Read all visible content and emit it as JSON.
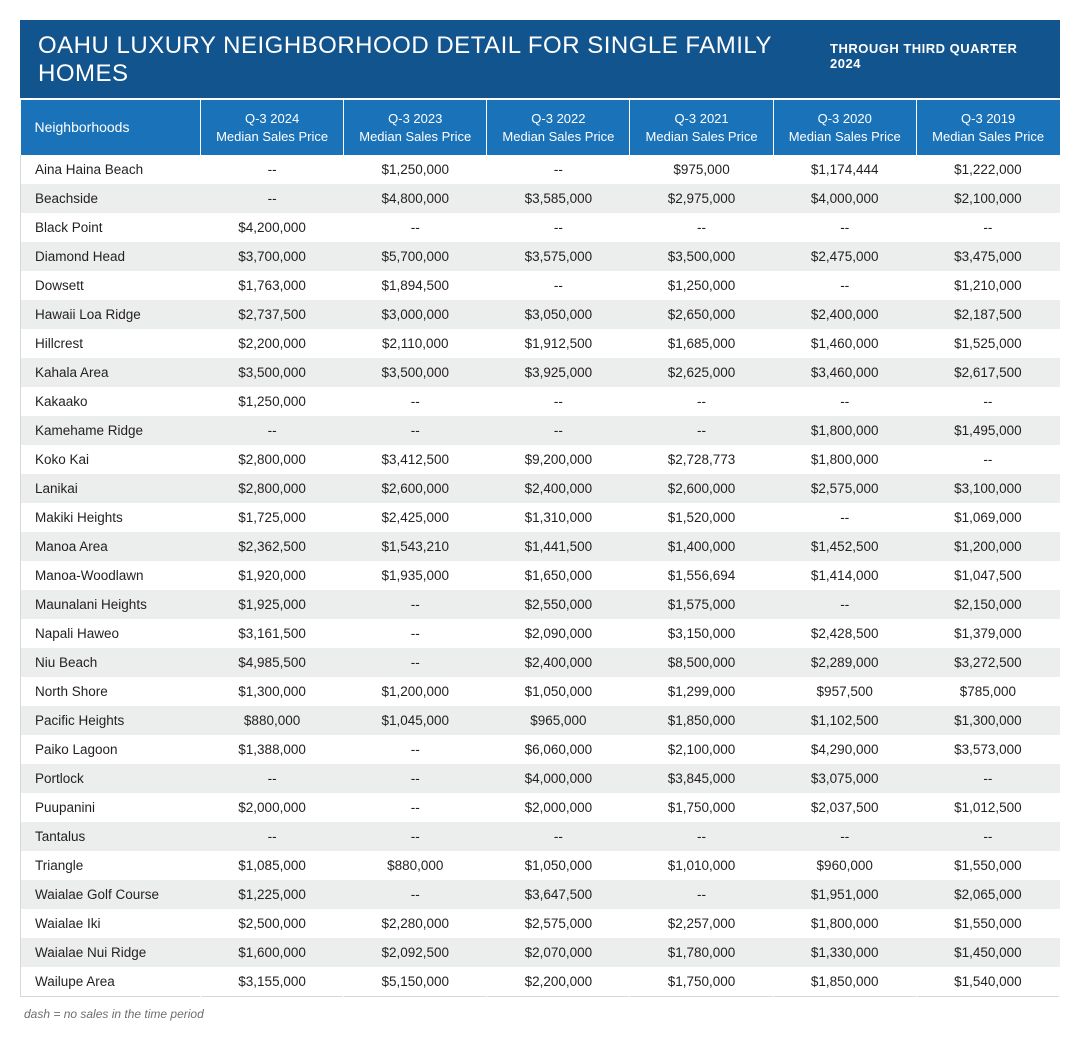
{
  "header": {
    "title": "OAHU LUXURY NEIGHBORHOOD DETAIL FOR SINGLE FAMILY HOMES",
    "period": "THROUGH THIRD QUARTER 2024"
  },
  "table": {
    "first_column_label": "Neighborhoods",
    "year_columns": [
      {
        "line1": "Q-3 2024",
        "line2": "Median Sales Price"
      },
      {
        "line1": "Q-3 2023",
        "line2": "Median Sales Price"
      },
      {
        "line1": "Q-3 2022",
        "line2": "Median Sales Price"
      },
      {
        "line1": "Q-3 2021",
        "line2": "Median Sales Price"
      },
      {
        "line1": "Q-3 2020",
        "line2": "Median Sales Price"
      },
      {
        "line1": "Q-3 2019",
        "line2": "Median Sales Price"
      }
    ],
    "rows": [
      {
        "name": "Aina Haina Beach",
        "v": [
          "--",
          "$1,250,000",
          "--",
          "$975,000",
          "$1,174,444",
          "$1,222,000"
        ]
      },
      {
        "name": "Beachside",
        "v": [
          "--",
          "$4,800,000",
          "$3,585,000",
          "$2,975,000",
          "$4,000,000",
          "$2,100,000"
        ]
      },
      {
        "name": "Black Point",
        "v": [
          "$4,200,000",
          "--",
          "--",
          "--",
          "--",
          "--"
        ]
      },
      {
        "name": "Diamond Head",
        "v": [
          "$3,700,000",
          "$5,700,000",
          "$3,575,000",
          "$3,500,000",
          "$2,475,000",
          "$3,475,000"
        ]
      },
      {
        "name": "Dowsett",
        "v": [
          "$1,763,000",
          "$1,894,500",
          "--",
          "$1,250,000",
          "--",
          "$1,210,000"
        ]
      },
      {
        "name": "Hawaii Loa Ridge",
        "v": [
          "$2,737,500",
          "$3,000,000",
          "$3,050,000",
          "$2,650,000",
          "$2,400,000",
          "$2,187,500"
        ]
      },
      {
        "name": "Hillcrest",
        "v": [
          "$2,200,000",
          "$2,110,000",
          "$1,912,500",
          "$1,685,000",
          "$1,460,000",
          "$1,525,000"
        ]
      },
      {
        "name": "Kahala Area",
        "v": [
          "$3,500,000",
          "$3,500,000",
          "$3,925,000",
          "$2,625,000",
          "$3,460,000",
          "$2,617,500"
        ]
      },
      {
        "name": "Kakaako",
        "v": [
          "$1,250,000",
          "--",
          "--",
          "--",
          "--",
          "--"
        ]
      },
      {
        "name": "Kamehame Ridge",
        "v": [
          "--",
          "--",
          "--",
          "--",
          "$1,800,000",
          "$1,495,000"
        ]
      },
      {
        "name": "Koko Kai",
        "v": [
          "$2,800,000",
          "$3,412,500",
          "$9,200,000",
          "$2,728,773",
          "$1,800,000",
          "--"
        ]
      },
      {
        "name": "Lanikai",
        "v": [
          "$2,800,000",
          "$2,600,000",
          "$2,400,000",
          "$2,600,000",
          "$2,575,000",
          "$3,100,000"
        ]
      },
      {
        "name": "Makiki Heights",
        "v": [
          "$1,725,000",
          "$2,425,000",
          "$1,310,000",
          "$1,520,000",
          "--",
          "$1,069,000"
        ]
      },
      {
        "name": "Manoa Area",
        "v": [
          "$2,362,500",
          "$1,543,210",
          "$1,441,500",
          "$1,400,000",
          "$1,452,500",
          "$1,200,000"
        ]
      },
      {
        "name": "Manoa-Woodlawn",
        "v": [
          "$1,920,000",
          "$1,935,000",
          "$1,650,000",
          "$1,556,694",
          "$1,414,000",
          "$1,047,500"
        ]
      },
      {
        "name": "Maunalani Heights",
        "v": [
          "$1,925,000",
          "--",
          "$2,550,000",
          "$1,575,000",
          "--",
          "$2,150,000"
        ]
      },
      {
        "name": "Napali Haweo",
        "v": [
          "$3,161,500",
          "--",
          "$2,090,000",
          "$3,150,000",
          "$2,428,500",
          "$1,379,000"
        ]
      },
      {
        "name": "Niu Beach",
        "v": [
          "$4,985,500",
          "--",
          "$2,400,000",
          "$8,500,000",
          "$2,289,000",
          "$3,272,500"
        ]
      },
      {
        "name": "North Shore",
        "v": [
          "$1,300,000",
          "$1,200,000",
          "$1,050,000",
          "$1,299,000",
          "$957,500",
          "$785,000"
        ]
      },
      {
        "name": "Pacific Heights",
        "v": [
          "$880,000",
          "$1,045,000",
          "$965,000",
          "$1,850,000",
          "$1,102,500",
          "$1,300,000"
        ]
      },
      {
        "name": "Paiko Lagoon",
        "v": [
          "$1,388,000",
          "--",
          "$6,060,000",
          "$2,100,000",
          "$4,290,000",
          "$3,573,000"
        ]
      },
      {
        "name": "Portlock",
        "v": [
          "--",
          "--",
          "$4,000,000",
          "$3,845,000",
          "$3,075,000",
          "--"
        ]
      },
      {
        "name": "Puupanini",
        "v": [
          "$2,000,000",
          "--",
          "$2,000,000",
          "$1,750,000",
          "$2,037,500",
          "$1,012,500"
        ]
      },
      {
        "name": "Tantalus",
        "v": [
          "--",
          "--",
          "--",
          "--",
          "--",
          "--"
        ]
      },
      {
        "name": "Triangle",
        "v": [
          "$1,085,000",
          "$880,000",
          "$1,050,000",
          "$1,010,000",
          "$960,000",
          "$1,550,000"
        ]
      },
      {
        "name": "Waialae Golf Course",
        "v": [
          "$1,225,000",
          "--",
          "$3,647,500",
          "--",
          "$1,951,000",
          "$2,065,000"
        ]
      },
      {
        "name": "Waialae Iki",
        "v": [
          "$2,500,000",
          "$2,280,000",
          "$2,575,000",
          "$2,257,000",
          "$1,800,000",
          "$1,550,000"
        ]
      },
      {
        "name": "Waialae Nui Ridge",
        "v": [
          "$1,600,000",
          "$2,092,500",
          "$2,070,000",
          "$1,780,000",
          "$1,330,000",
          "$1,450,000"
        ]
      },
      {
        "name": "Wailupe Area",
        "v": [
          "$3,155,000",
          "$5,150,000",
          "$2,200,000",
          "$1,750,000",
          "$1,850,000",
          "$1,540,000"
        ]
      }
    ]
  },
  "footnote": "dash = no sales in the time period",
  "style": {
    "title_bg": "#12548e",
    "header_bg": "#1a72b8",
    "row_odd_bg": "#ffffff",
    "row_even_bg": "#eceded",
    "text_color": "#231f20",
    "footnote_color": "#6d6e71"
  }
}
